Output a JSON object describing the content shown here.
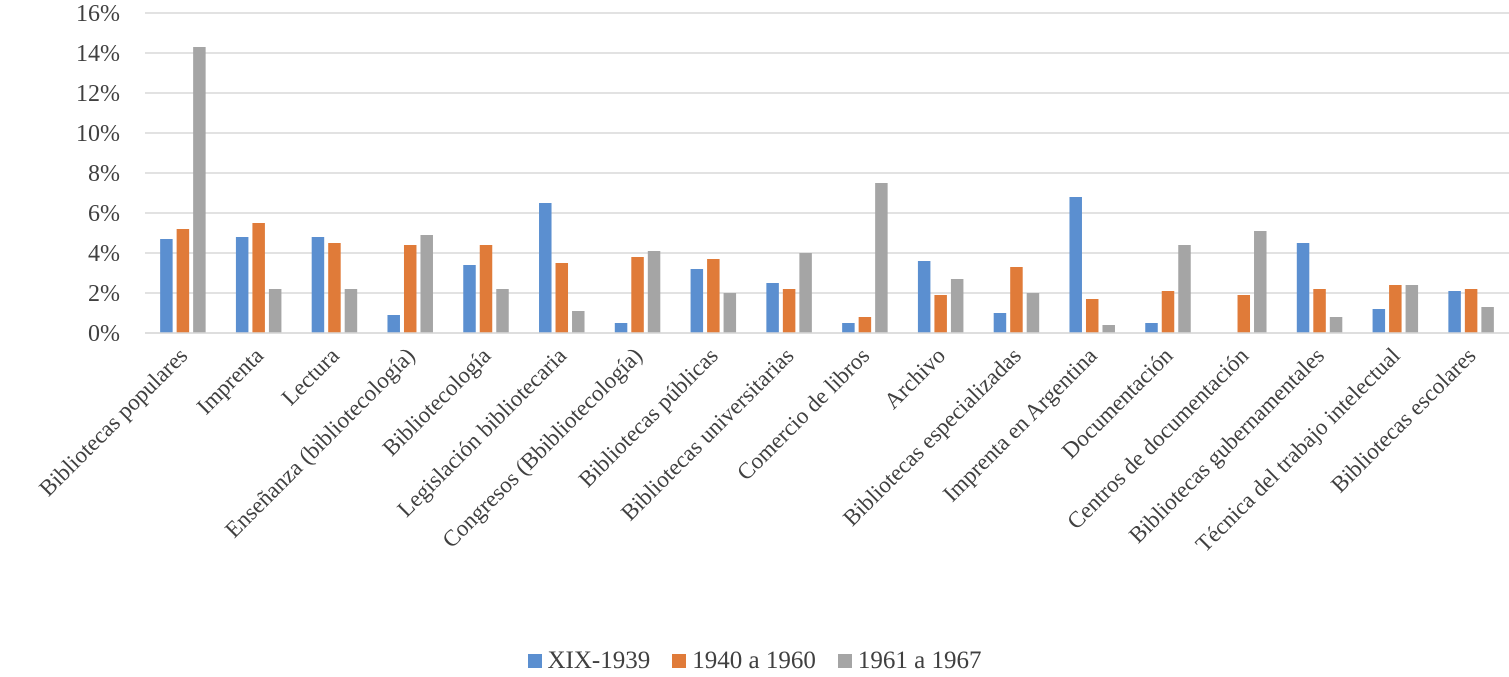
{
  "chart_data": {
    "type": "bar",
    "title": "",
    "xlabel": "",
    "ylabel": "",
    "ylim": [
      0,
      16
    ],
    "yticks": [
      0,
      2,
      4,
      6,
      8,
      10,
      12,
      14,
      16
    ],
    "ytick_labels": [
      "0%",
      "2%",
      "4%",
      "6%",
      "8%",
      "10%",
      "12%",
      "14%",
      "16%"
    ],
    "grid": true,
    "legend_position": "bottom",
    "categories": [
      "Bibliotecas populares",
      "Imprenta",
      "Lectura",
      "Enseñanza (bibliotecología)",
      "Bibliotecología",
      "Legislación bibliotecaria",
      "Congresos (Bbibliotecología)",
      "Bibliotecas públicas",
      "Bibliotecas universitarias",
      "Comercio de libros",
      "Archivo",
      "Bibliotecas especializadas",
      "Imprenta en Argentina",
      "Documentación",
      "Centros de documentación",
      "Bibliotecas gubernamentales",
      "Técnica del trabajo intelectual",
      "Bibliotecas escolares"
    ],
    "series": [
      {
        "name": "XIX-1939",
        "color": "#5B8FD0",
        "values": [
          4.7,
          4.8,
          4.8,
          0.9,
          3.4,
          6.5,
          0.5,
          3.2,
          2.5,
          0.5,
          3.6,
          1.0,
          6.8,
          0.5,
          0.0,
          4.5,
          1.2,
          2.1
        ]
      },
      {
        "name": "1940 a 1960",
        "color": "#E07B39",
        "values": [
          5.2,
          5.5,
          4.5,
          4.4,
          4.4,
          3.5,
          3.8,
          3.7,
          2.2,
          0.8,
          1.9,
          3.3,
          1.7,
          2.1,
          1.9,
          2.2,
          2.4,
          2.2
        ]
      },
      {
        "name": "1961 a 1967",
        "color": "#A5A5A5",
        "values": [
          14.3,
          2.2,
          2.2,
          4.9,
          2.2,
          1.1,
          4.1,
          2.0,
          4.0,
          7.5,
          2.7,
          2.0,
          0.4,
          4.4,
          5.1,
          0.8,
          2.4,
          1.3
        ]
      }
    ]
  }
}
